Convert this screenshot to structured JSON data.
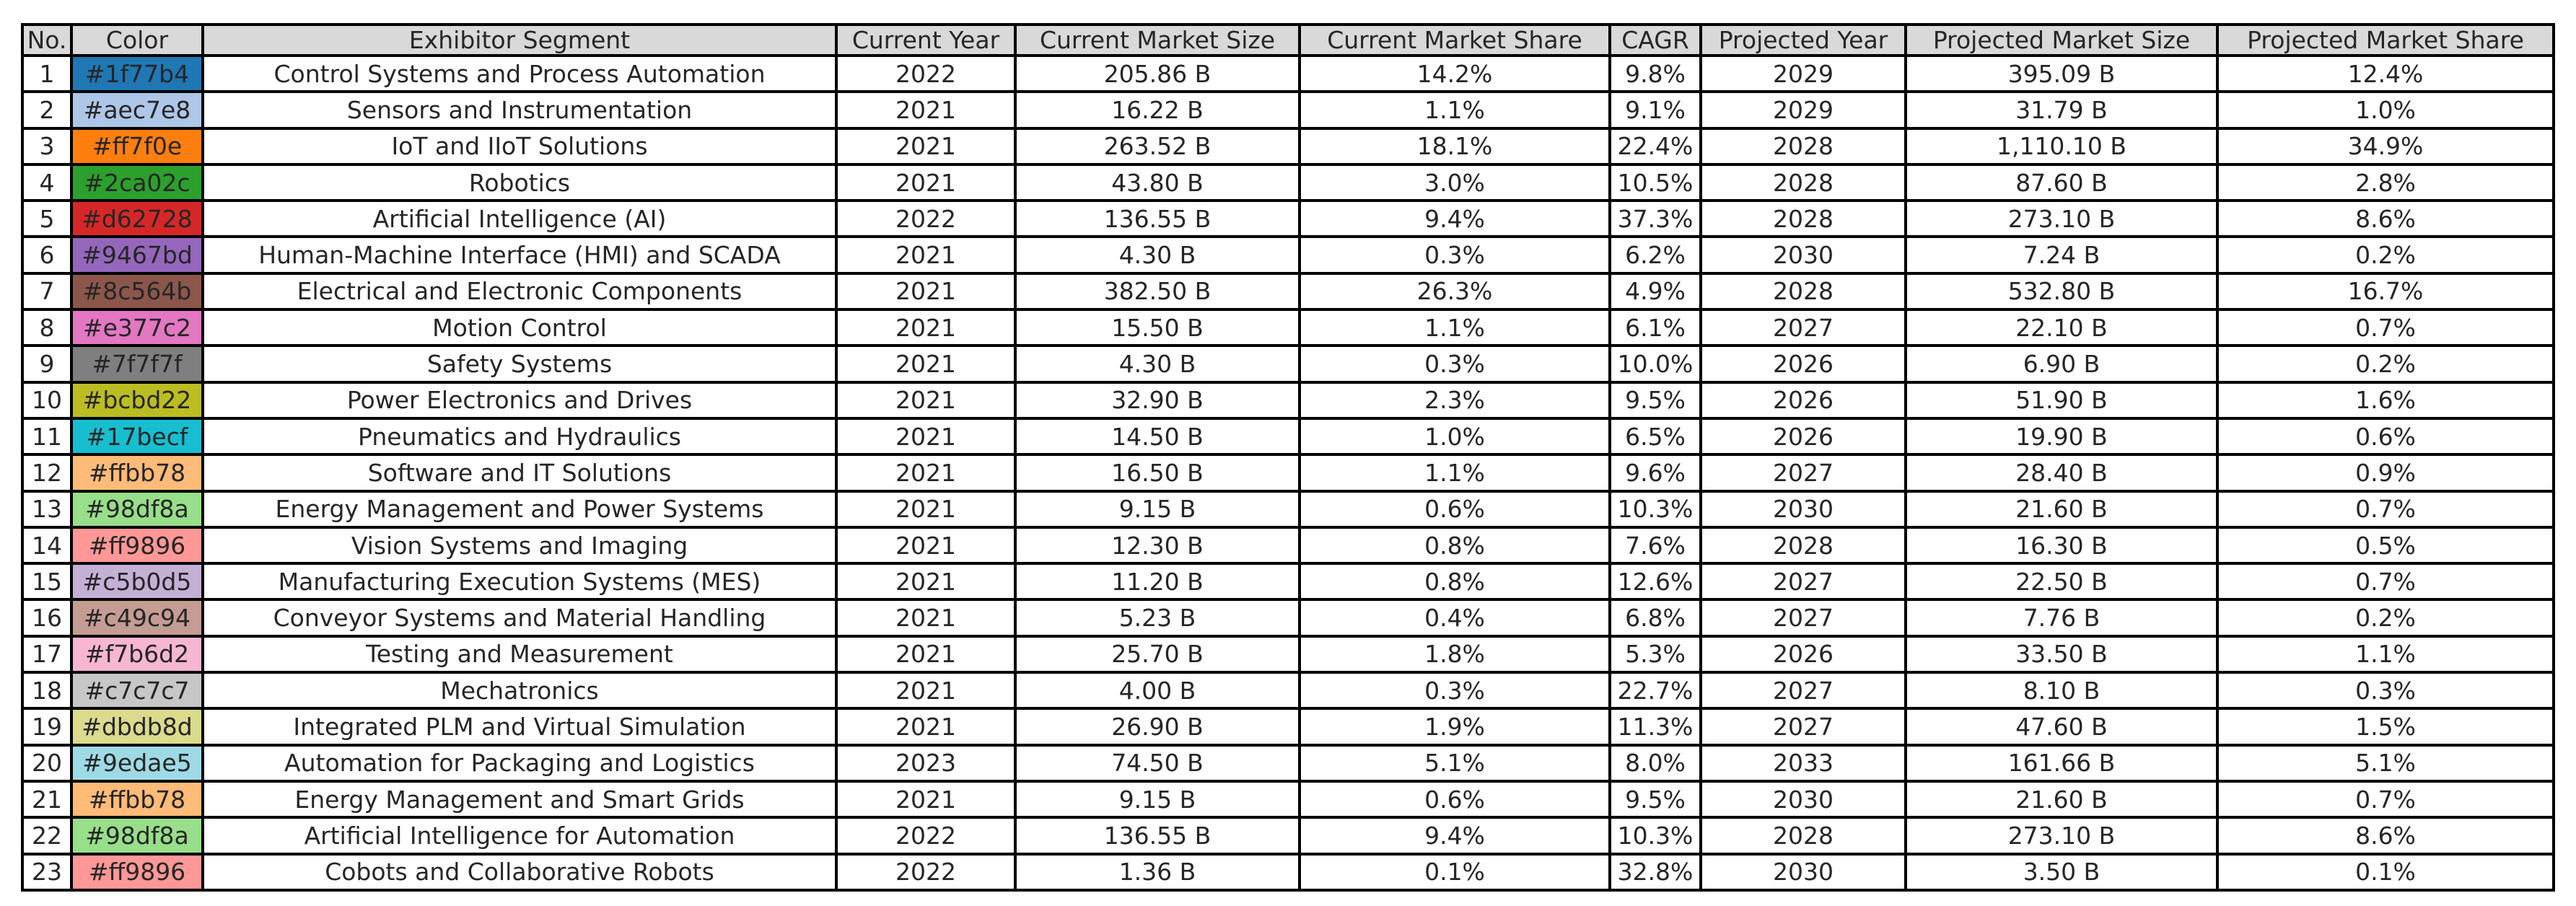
{
  "chart_data": {
    "type": "table",
    "columns": [
      "No.",
      "Color",
      "Exhibitor Segment",
      "Current Year",
      "Current Market Size",
      "Current Market Share",
      "CAGR",
      "Projected Year",
      "Projected Market Size",
      "Projected Market Share"
    ],
    "rows": [
      [
        "1",
        "#1f77b4",
        "Control Systems and Process Automation",
        "2022",
        "205.86 B",
        "14.2%",
        "9.8%",
        "2029",
        "395.09 B",
        "12.4%"
      ],
      [
        "2",
        "#aec7e8",
        "Sensors and Instrumentation",
        "2021",
        "16.22 B",
        "1.1%",
        "9.1%",
        "2029",
        "31.79 B",
        "1.0%"
      ],
      [
        "3",
        "#ff7f0e",
        "IoT and IIoT Solutions",
        "2021",
        "263.52 B",
        "18.1%",
        "22.4%",
        "2028",
        "1,110.10 B",
        "34.9%"
      ],
      [
        "4",
        "#2ca02c",
        "Robotics",
        "2021",
        "43.80 B",
        "3.0%",
        "10.5%",
        "2028",
        "87.60 B",
        "2.8%"
      ],
      [
        "5",
        "#d62728",
        "Artificial Intelligence (AI)",
        "2022",
        "136.55 B",
        "9.4%",
        "37.3%",
        "2028",
        "273.10 B",
        "8.6%"
      ],
      [
        "6",
        "#9467bd",
        "Human-Machine Interface (HMI) and SCADA",
        "2021",
        "4.30 B",
        "0.3%",
        "6.2%",
        "2030",
        "7.24 B",
        "0.2%"
      ],
      [
        "7",
        "#8c564b",
        "Electrical and Electronic Components",
        "2021",
        "382.50 B",
        "26.3%",
        "4.9%",
        "2028",
        "532.80 B",
        "16.7%"
      ],
      [
        "8",
        "#e377c2",
        "Motion Control",
        "2021",
        "15.50 B",
        "1.1%",
        "6.1%",
        "2027",
        "22.10 B",
        "0.7%"
      ],
      [
        "9",
        "#7f7f7f",
        "Safety Systems",
        "2021",
        "4.30 B",
        "0.3%",
        "10.0%",
        "2026",
        "6.90 B",
        "0.2%"
      ],
      [
        "10",
        "#bcbd22",
        "Power Electronics and Drives",
        "2021",
        "32.90 B",
        "2.3%",
        "9.5%",
        "2026",
        "51.90 B",
        "1.6%"
      ],
      [
        "11",
        "#17becf",
        "Pneumatics and Hydraulics",
        "2021",
        "14.50 B",
        "1.0%",
        "6.5%",
        "2026",
        "19.90 B",
        "0.6%"
      ],
      [
        "12",
        "#ffbb78",
        "Software and IT Solutions",
        "2021",
        "16.50 B",
        "1.1%",
        "9.6%",
        "2027",
        "28.40 B",
        "0.9%"
      ],
      [
        "13",
        "#98df8a",
        "Energy Management and Power Systems",
        "2021",
        "9.15 B",
        "0.6%",
        "10.3%",
        "2030",
        "21.60 B",
        "0.7%"
      ],
      [
        "14",
        "#ff9896",
        "Vision Systems and Imaging",
        "2021",
        "12.30 B",
        "0.8%",
        "7.6%",
        "2028",
        "16.30 B",
        "0.5%"
      ],
      [
        "15",
        "#c5b0d5",
        "Manufacturing Execution Systems (MES)",
        "2021",
        "11.20 B",
        "0.8%",
        "12.6%",
        "2027",
        "22.50 B",
        "0.7%"
      ],
      [
        "16",
        "#c49c94",
        "Conveyor Systems and Material Handling",
        "2021",
        "5.23 B",
        "0.4%",
        "6.8%",
        "2027",
        "7.76 B",
        "0.2%"
      ],
      [
        "17",
        "#f7b6d2",
        "Testing and Measurement",
        "2021",
        "25.70 B",
        "1.8%",
        "5.3%",
        "2026",
        "33.50 B",
        "1.1%"
      ],
      [
        "18",
        "#c7c7c7",
        "Mechatronics",
        "2021",
        "4.00 B",
        "0.3%",
        "22.7%",
        "2027",
        "8.10 B",
        "0.3%"
      ],
      [
        "19",
        "#dbdb8d",
        "Integrated PLM and Virtual Simulation",
        "2021",
        "26.90 B",
        "1.9%",
        "11.3%",
        "2027",
        "47.60 B",
        "1.5%"
      ],
      [
        "20",
        "#9edae5",
        "Automation for Packaging and Logistics",
        "2023",
        "74.50 B",
        "5.1%",
        "8.0%",
        "2033",
        "161.66 B",
        "5.1%"
      ],
      [
        "21",
        "#ffbb78",
        "Energy Management and Smart Grids",
        "2021",
        "9.15 B",
        "0.6%",
        "9.5%",
        "2030",
        "21.60 B",
        "0.7%"
      ],
      [
        "22",
        "#98df8a",
        "Artificial Intelligence for Automation",
        "2022",
        "136.55 B",
        "9.4%",
        "10.3%",
        "2028",
        "273.10 B",
        "8.6%"
      ],
      [
        "23",
        "#ff9896",
        "Cobots and Collaborative Robots",
        "2022",
        "1.36 B",
        "0.1%",
        "32.8%",
        "2030",
        "3.50 B",
        "0.1%"
      ]
    ]
  }
}
